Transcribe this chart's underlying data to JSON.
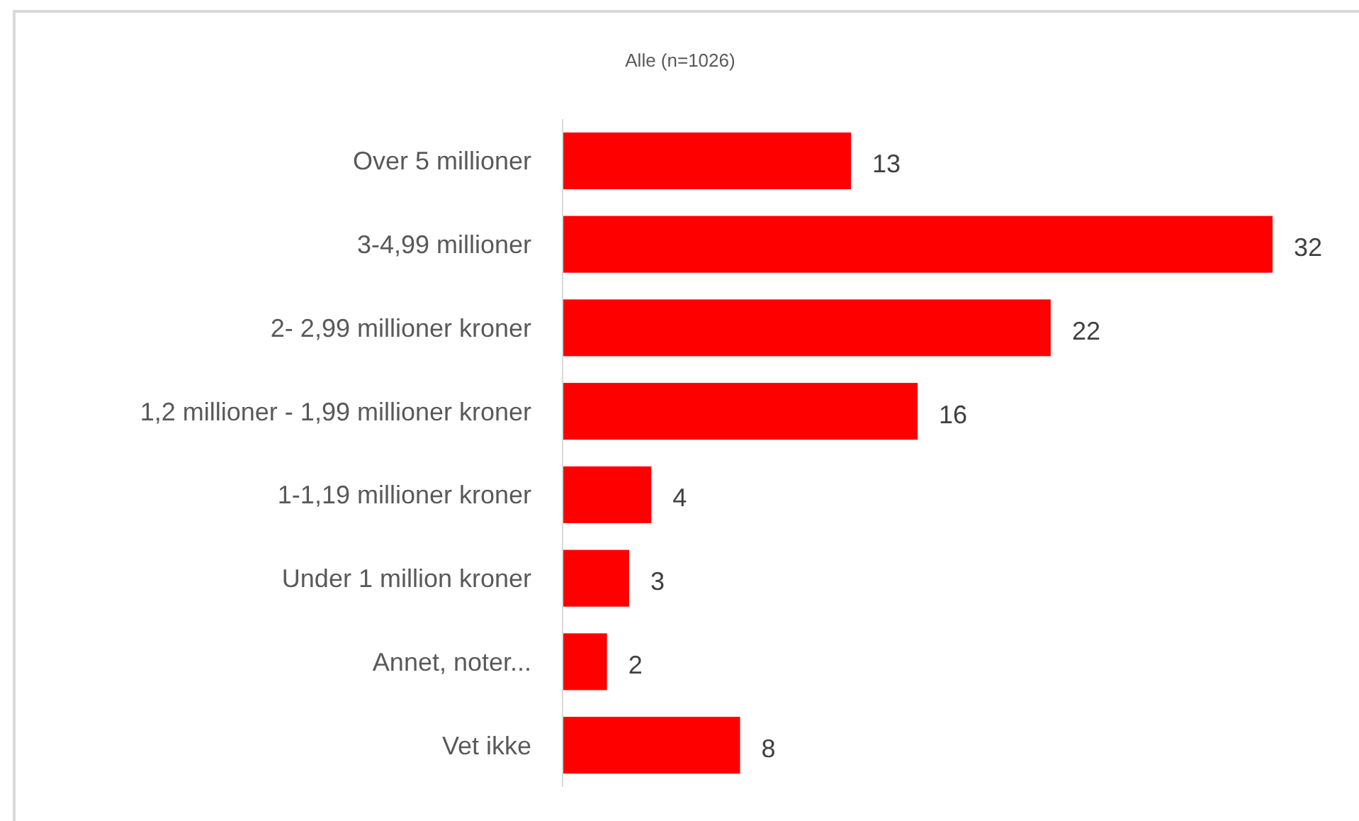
{
  "chart_data": {
    "type": "bar",
    "orientation": "horizontal",
    "title": "Alle (n=1026)",
    "categories": [
      "Over 5 millioner",
      "3-4,99 millioner",
      "2- 2,99 millioner kroner",
      "1,2 millioner - 1,99 millioner kroner",
      "1-1,19 millioner kroner",
      "Under 1 million kroner",
      "Annet, noter...",
      "Vet ikke"
    ],
    "values": [
      13,
      32,
      22,
      16,
      4,
      3,
      2,
      8
    ],
    "color": "#ff0000",
    "data_labels": true,
    "tick_labels": "y"
  }
}
